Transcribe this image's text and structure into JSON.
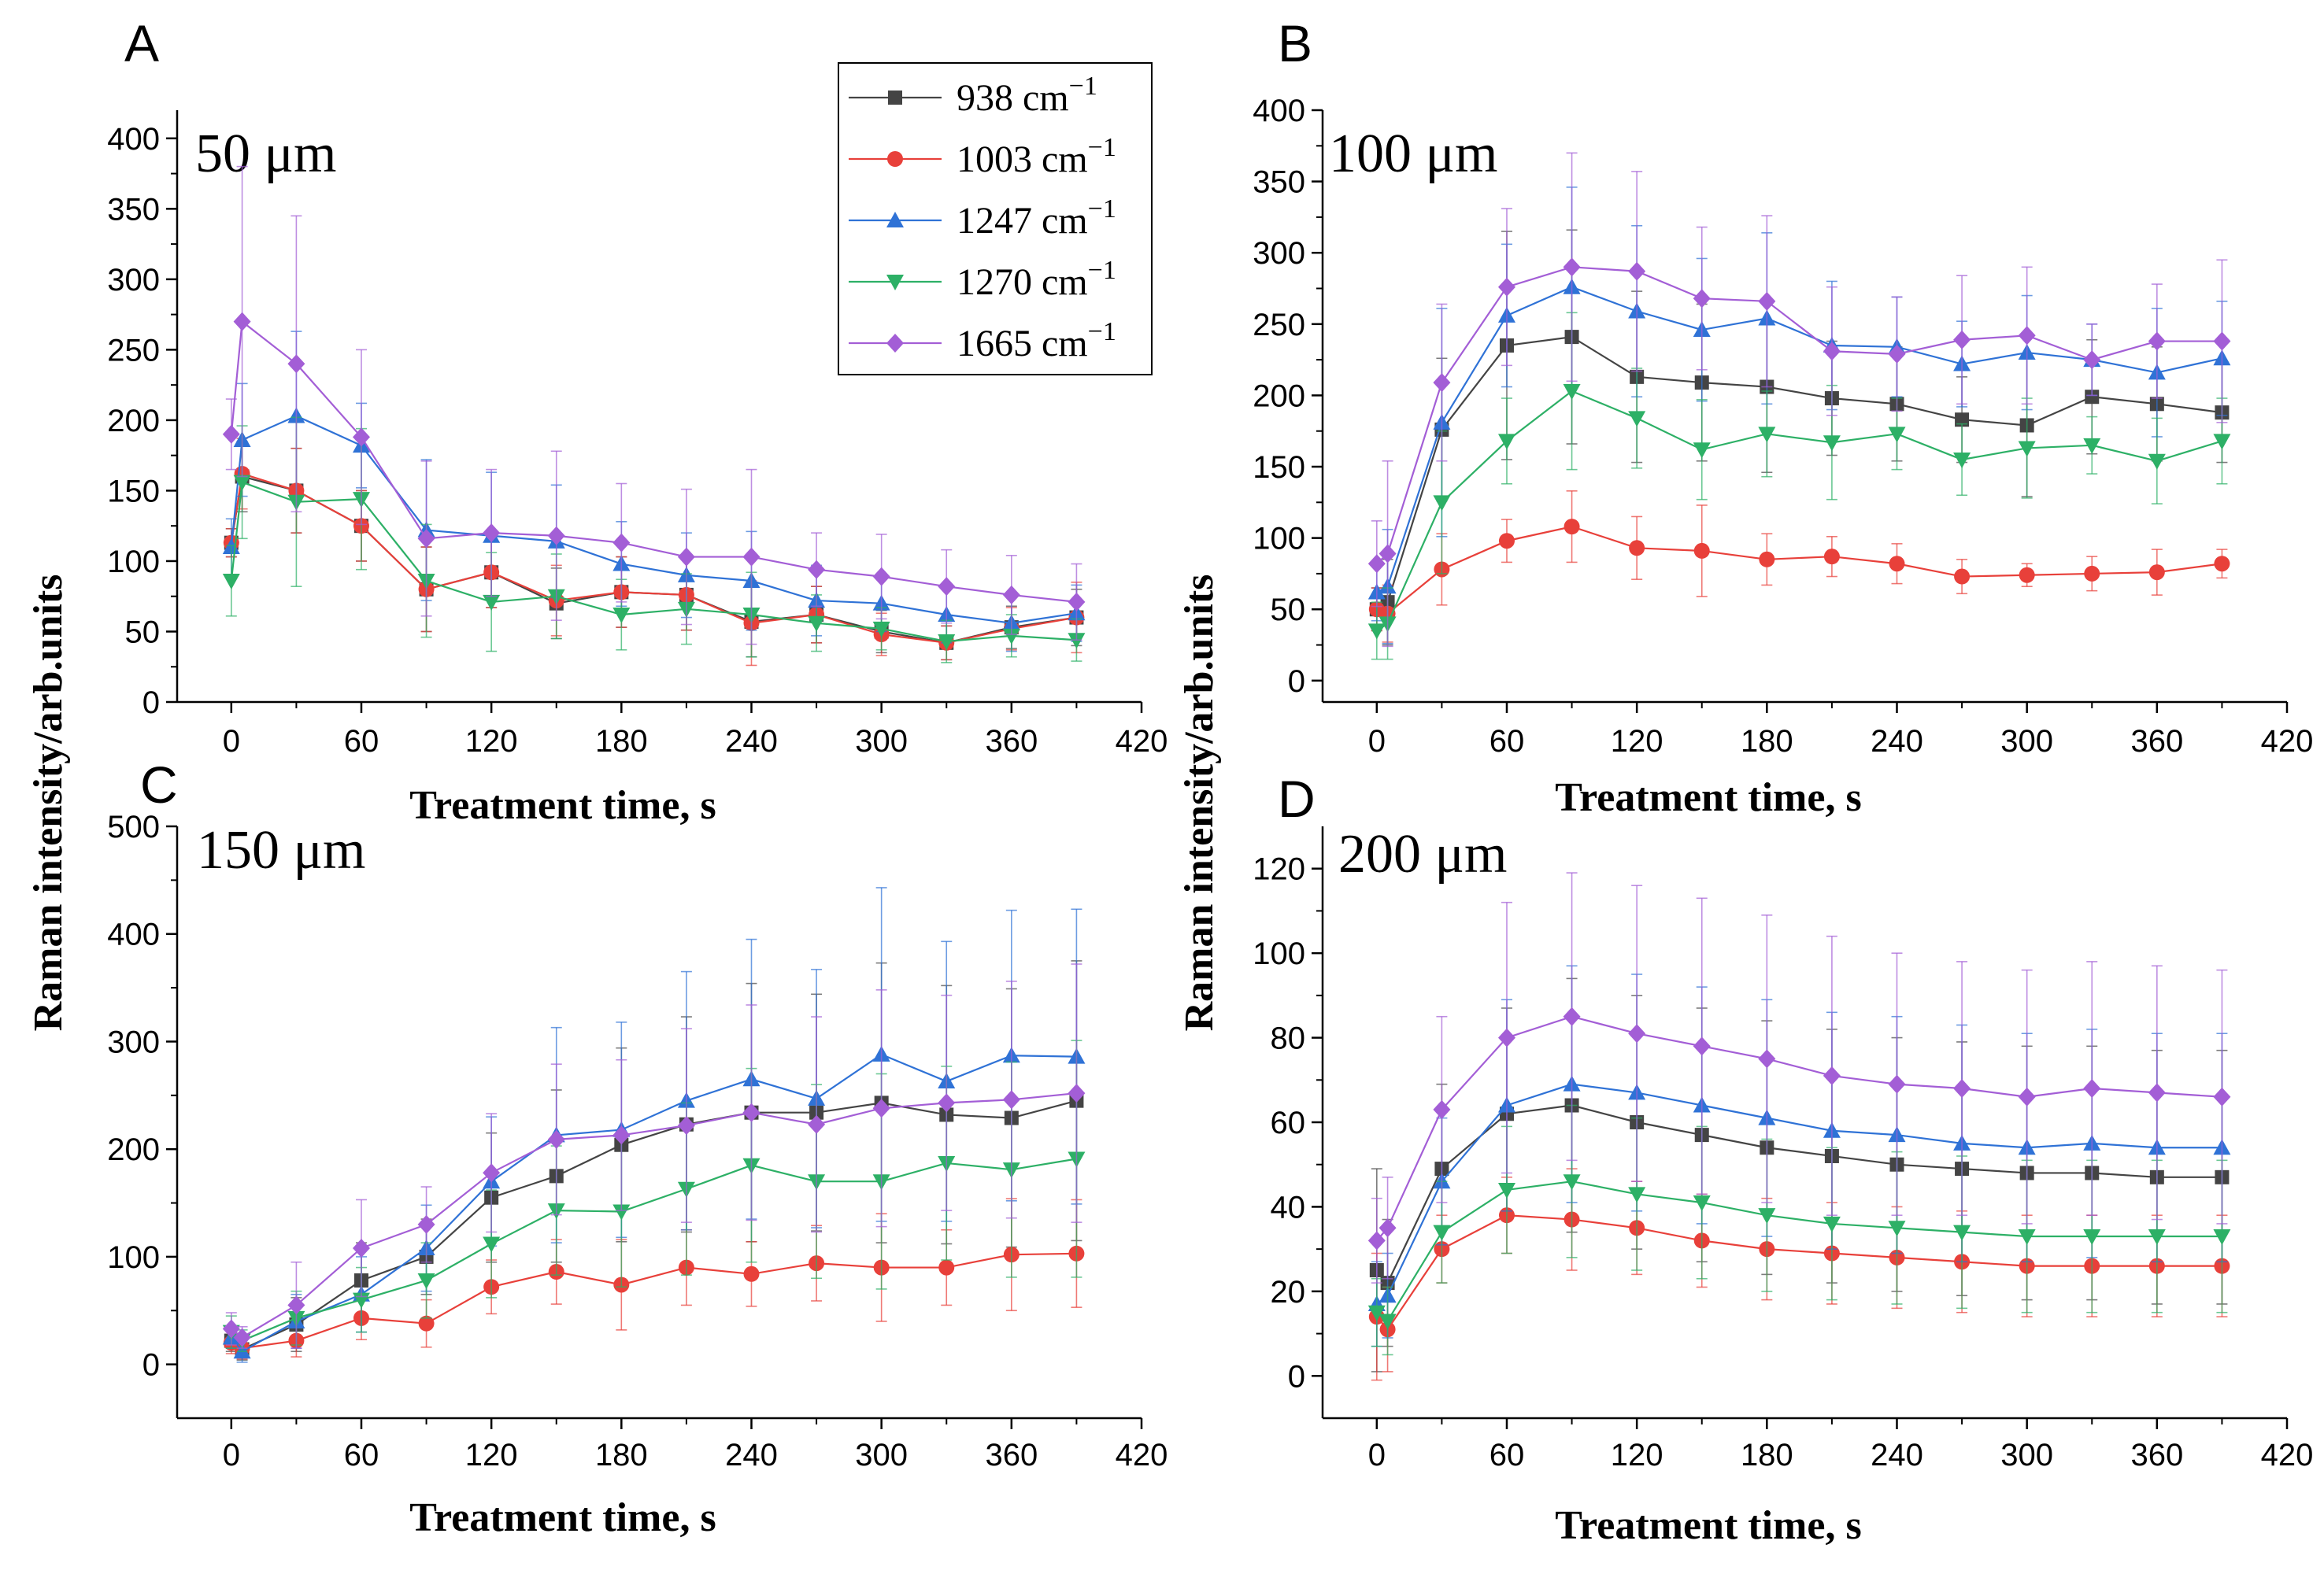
{
  "chart_data": {
    "type": "line",
    "ylabel": "Raman intensity/arb.units",
    "legend": {
      "placement": "top-right of panel A",
      "entries": [
        {
          "label": "938 cm",
          "sup": "−1"
        },
        {
          "label": "1003 cm",
          "sup": "−1"
        },
        {
          "label": "1247 cm",
          "sup": "−1"
        },
        {
          "label": "1270 cm",
          "sup": "−1"
        },
        {
          "label": "1665 cm",
          "sup": "−1"
        }
      ]
    },
    "series_styles": [
      {
        "name": "938 cm-1",
        "color": "#444444",
        "marker": "square"
      },
      {
        "name": "1003 cm-1",
        "color": "#e8403a",
        "marker": "circle"
      },
      {
        "name": "1247 cm-1",
        "color": "#2f72d6",
        "marker": "triangle-up"
      },
      {
        "name": "1270 cm-1",
        "color": "#2db066",
        "marker": "triangle-down"
      },
      {
        "name": "1665 cm-1",
        "color": "#a35ed6",
        "marker": "diamond"
      }
    ],
    "panels": [
      {
        "letter": "A",
        "subtitle": "50 μm",
        "xlabel": "Treatment time, s",
        "xlim": [
          -25,
          420
        ],
        "xticks": [
          0,
          60,
          120,
          180,
          240,
          300,
          360,
          420
        ],
        "ylim": [
          0,
          420
        ],
        "yticks": [
          0,
          50,
          100,
          150,
          200,
          250,
          300,
          350,
          400
        ],
        "x": [
          0,
          5,
          30,
          60,
          90,
          120,
          150,
          180,
          210,
          240,
          270,
          300,
          330,
          360,
          390
        ],
        "series": [
          {
            "name": "938 cm-1",
            "values": [
              113,
              160,
              150,
              125,
              80,
              92,
              70,
              78,
              76,
              57,
              62,
              50,
              42,
              53,
              60
            ],
            "err": [
              10,
              25,
              30,
              25,
              30,
              25,
              25,
              25,
              25,
              25,
              20,
              15,
              12,
              15,
              20
            ]
          },
          {
            "name": "1003 cm-1",
            "values": [
              113,
              162,
              150,
              125,
              80,
              92,
              72,
              78,
              76,
              56,
              62,
              48,
              42,
              52,
              60
            ],
            "err": [
              10,
              25,
              30,
              25,
              30,
              25,
              25,
              25,
              25,
              30,
              20,
              15,
              12,
              15,
              25
            ]
          },
          {
            "name": "1247 cm-1",
            "values": [
              110,
              186,
              203,
              182,
              122,
              118,
              114,
              98,
              90,
              86,
              72,
              70,
              62,
              56,
              63
            ],
            "err": [
              20,
              40,
              60,
              30,
              50,
              45,
              40,
              30,
              30,
              35,
              25,
              20,
              20,
              20,
              20
            ]
          },
          {
            "name": "1270 cm-1",
            "values": [
              86,
              156,
              142,
              144,
              86,
              71,
              75,
              62,
              66,
              62,
              56,
              52,
              43,
              47,
              44
            ],
            "err": [
              25,
              40,
              60,
              50,
              40,
              35,
              30,
              25,
              25,
              30,
              20,
              15,
              15,
              15,
              15
            ]
          },
          {
            "name": "1665 cm-1",
            "values": [
              190,
              270,
              240,
              188,
              116,
              120,
              118,
              113,
              103,
              103,
              94,
              89,
              82,
              76,
              71
            ],
            "err": [
              25,
              110,
              105,
              62,
              55,
              45,
              60,
              42,
              48,
              62,
              26,
              30,
              26,
              28,
              27
            ]
          }
        ]
      },
      {
        "letter": "B",
        "subtitle": "100 μm",
        "xlabel": "Treatment time, s",
        "xlim": [
          -25,
          420
        ],
        "xticks": [
          0,
          60,
          120,
          180,
          240,
          300,
          360,
          420
        ],
        "ylim": [
          -15,
          400
        ],
        "yticks": [
          0,
          50,
          100,
          150,
          200,
          250,
          300,
          350,
          400
        ],
        "x": [
          0,
          5,
          30,
          60,
          90,
          120,
          150,
          180,
          210,
          240,
          270,
          300,
          330,
          360,
          390
        ],
        "series": [
          {
            "name": "938 cm-1",
            "values": [
              50,
              55,
              176,
              235,
              241,
              213,
              209,
              206,
              198,
              194,
              183,
              179,
              199,
              194,
              188
            ],
            "err": [
              15,
              30,
              50,
              80,
              75,
              60,
              55,
              60,
              40,
              40,
              30,
              50,
              40,
              40,
              35
            ]
          },
          {
            "name": "1003 cm-1",
            "values": [
              50,
              47,
              78,
              98,
              108,
              93,
              91,
              85,
              87,
              82,
              73,
              74,
              75,
              76,
              82
            ],
            "err": [
              15,
              20,
              25,
              15,
              25,
              22,
              32,
              18,
              14,
              14,
              12,
              8,
              12,
              16,
              10
            ]
          },
          {
            "name": "1247 cm-1",
            "values": [
              62,
              66,
              181,
              256,
              276,
              259,
              246,
              254,
              235,
              234,
              222,
              230,
              225,
              216,
              226
            ],
            "err": [
              20,
              40,
              80,
              50,
              70,
              60,
              50,
              60,
              45,
              35,
              30,
              40,
              25,
              45,
              40
            ]
          },
          {
            "name": "1270 cm-1",
            "values": [
              35,
              40,
              125,
              168,
              203,
              184,
              162,
              173,
              167,
              173,
              155,
              163,
              165,
              154,
              168
            ],
            "err": [
              20,
              25,
              50,
              30,
              55,
              35,
              35,
              30,
              40,
              25,
              25,
              35,
              20,
              30,
              30
            ]
          },
          {
            "name": "1665 cm-1",
            "values": [
              82,
              89,
              209,
              276,
              290,
              287,
              268,
              266,
              231,
              229,
              239,
              242,
              225,
              238,
              238
            ],
            "err": [
              30,
              65,
              55,
              55,
              80,
              70,
              50,
              60,
              45,
              40,
              45,
              48,
              25,
              40,
              57
            ]
          }
        ]
      },
      {
        "letter": "C",
        "subtitle": "150 μm",
        "xlabel": "Treatment time, s",
        "xlim": [
          -25,
          420
        ],
        "xticks": [
          0,
          60,
          120,
          180,
          240,
          300,
          360,
          420
        ],
        "ylim": [
          -50,
          500
        ],
        "yticks": [
          0,
          100,
          200,
          300,
          400,
          500
        ],
        "x": [
          0,
          5,
          30,
          60,
          90,
          120,
          150,
          180,
          210,
          240,
          270,
          300,
          330,
          360,
          390
        ],
        "series": [
          {
            "name": "938 cm-1",
            "values": [
              22,
              14,
              37,
              78,
              100,
              155,
              175,
              204,
              223,
              234,
              234,
              243,
              232,
              229,
              245
            ],
            "err": [
              10,
              10,
              25,
              35,
              35,
              60,
              80,
              90,
              100,
              120,
              110,
              130,
              120,
              120,
              130
            ]
          },
          {
            "name": "1003 cm-1",
            "values": [
              20,
              15,
              22,
              43,
              38,
              72,
              86,
              74,
              90,
              84,
              94,
              90,
              90,
              102,
              103
            ],
            "err": [
              10,
              10,
              15,
              20,
              22,
              25,
              30,
              42,
              35,
              30,
              35,
              50,
              35,
              52,
              50
            ]
          },
          {
            "name": "1247 cm-1",
            "values": [
              25,
              12,
              40,
              65,
              108,
              170,
              213,
              218,
              245,
              265,
              247,
              288,
              263,
              287,
              286
            ],
            "err": [
              10,
              10,
              25,
              35,
              40,
              60,
              100,
              100,
              120,
              130,
              120,
              155,
              130,
              135,
              137
            ]
          },
          {
            "name": "1270 cm-1",
            "values": [
              30,
              22,
              43,
              60,
              78,
              112,
              143,
              142,
              163,
              185,
              170,
              170,
              187,
              181,
              191
            ],
            "err": [
              15,
              10,
              25,
              30,
              35,
              50,
              60,
              70,
              80,
              90,
              90,
              100,
              90,
              100,
              110
            ]
          },
          {
            "name": "1665 cm-1",
            "values": [
              33,
              25,
              55,
              108,
              130,
              178,
              209,
              213,
              222,
              234,
              223,
              238,
              243,
              246,
              252
            ],
            "err": [
              15,
              10,
              40,
              45,
              35,
              55,
              70,
              70,
              90,
              100,
              100,
              110,
              100,
              110,
              120
            ]
          }
        ]
      },
      {
        "letter": "D",
        "subtitle": "200 μm",
        "xlabel": "Treatment time, s",
        "xlim": [
          -25,
          420
        ],
        "xticks": [
          0,
          60,
          120,
          180,
          240,
          300,
          360,
          420
        ],
        "ylim": [
          -10,
          130
        ],
        "yticks": [
          0,
          20,
          40,
          60,
          80,
          100,
          120
        ],
        "x": [
          0,
          5,
          30,
          60,
          90,
          120,
          150,
          180,
          210,
          240,
          270,
          300,
          330,
          360,
          390
        ],
        "series": [
          {
            "name": "938 cm-1",
            "values": [
              25,
              22,
              49,
              62,
              64,
              60,
              57,
              54,
              52,
              50,
              49,
              48,
              48,
              47,
              47
            ],
            "err": [
              24,
              15,
              20,
              25,
              30,
              30,
              30,
              30,
              30,
              30,
              30,
              30,
              30,
              30,
              30
            ]
          },
          {
            "name": "1003 cm-1",
            "values": [
              14,
              11,
              30,
              38,
              37,
              35,
              32,
              30,
              29,
              28,
              27,
              26,
              26,
              26,
              26
            ],
            "err": [
              15,
              10,
              8,
              9,
              12,
              11,
              11,
              12,
              12,
              12,
              12,
              12,
              12,
              12,
              12
            ]
          },
          {
            "name": "1247 cm-1",
            "values": [
              17,
              19,
              46,
              64,
              69,
              67,
              64,
              61,
              58,
              57,
              55,
              54,
              55,
              54,
              54
            ],
            "err": [
              10,
              10,
              15,
              25,
              28,
              28,
              28,
              28,
              28,
              28,
              28,
              27,
              27,
              27,
              27
            ]
          },
          {
            "name": "1270 cm-1",
            "values": [
              15,
              13,
              34,
              44,
              46,
              43,
              41,
              38,
              36,
              35,
              34,
              33,
              33,
              33,
              33
            ],
            "err": [
              8,
              8,
              12,
              15,
              18,
              18,
              18,
              18,
              18,
              18,
              18,
              18,
              18,
              18,
              18
            ]
          },
          {
            "name": "1665 cm-1",
            "values": [
              32,
              35,
              63,
              80,
              85,
              81,
              78,
              75,
              71,
              69,
              68,
              66,
              68,
              67,
              66
            ],
            "err": [
              10,
              12,
              22,
              32,
              34,
              35,
              35,
              34,
              33,
              31,
              30,
              30,
              30,
              30,
              30
            ]
          }
        ]
      }
    ]
  }
}
